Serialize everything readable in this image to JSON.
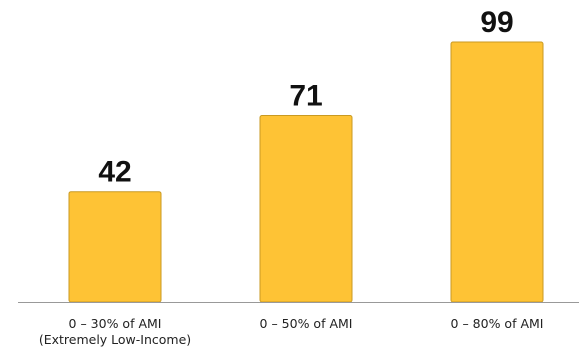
{
  "chart_data": {
    "type": "bar",
    "categories": [
      [
        "0 – 30% of AMI",
        "(Extremely Low-Income)"
      ],
      [
        "0 – 50% of AMI"
      ],
      [
        "0 – 80% of AMI"
      ]
    ],
    "values": [
      42,
      71,
      99
    ],
    "title": "",
    "xlabel": "",
    "ylabel": "",
    "ylim": [
      0,
      100
    ],
    "grid": false,
    "data_labels": true
  },
  "colors": {
    "bar_fill": "#FEC335",
    "bar_stroke": "#C99A22",
    "axis": "#999999"
  }
}
